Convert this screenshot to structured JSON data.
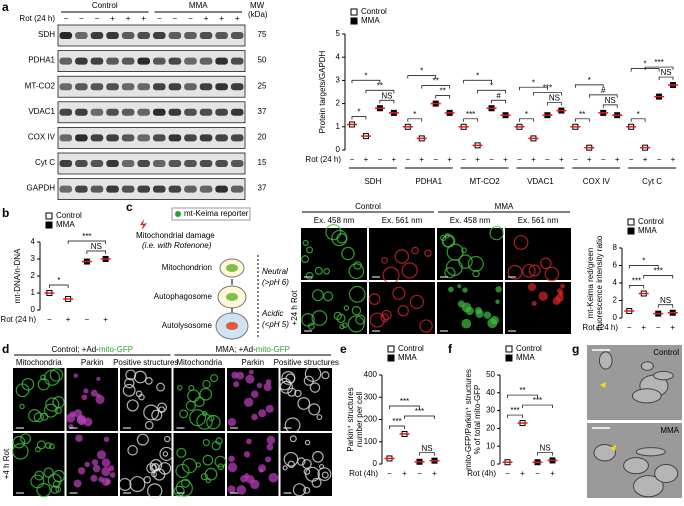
{
  "panel_labels": [
    "a",
    "b",
    "c",
    "d",
    "e",
    "f",
    "g"
  ],
  "blot": {
    "groups": [
      "Control",
      "MMA"
    ],
    "rot_label": "Rot (24 h)",
    "rot": [
      "−",
      "−",
      "−",
      "+",
      "+",
      "+",
      "−",
      "−",
      "−",
      "+",
      "+",
      "+"
    ],
    "mw_title": "MW",
    "mw_unit": "(kDa)",
    "rows": [
      {
        "protein": "SDH",
        "mw": "75"
      },
      {
        "protein": "PDHA1",
        "mw": "50"
      },
      {
        "protein": "MT-CO2",
        "mw": "25"
      },
      {
        "protein": "VDAC1",
        "mw": "37"
      },
      {
        "protein": "COX IV",
        "mw": "20"
      },
      {
        "protein": "Cyt C",
        "mw": "15"
      },
      {
        "protein": "GAPDH",
        "mw": "37"
      }
    ]
  },
  "keima_diagram": {
    "reporter": "mt-Keima reporter",
    "damage": "Mitochondrial damage",
    "damage_note": "(i.e. with Rotenone)",
    "stages": [
      "Mitochondrion",
      "Autophagosome",
      "Autolysosome"
    ],
    "neutral": "Neutral",
    "neutral_ph": "(>pH 6)",
    "acidic": "Acidic",
    "acidic_ph": "(<pH 5)"
  },
  "keima_images": {
    "groups": [
      "Control",
      "MMA"
    ],
    "channels": [
      "Ex. 458 nm",
      "Ex. 561 nm",
      "Ex. 458 nm",
      "Ex. 561 nm"
    ],
    "row_label": "+24 h Rot"
  },
  "parkin_images": {
    "groups": [
      "Control; +Ad-",
      "MMA; +Ad-"
    ],
    "reporter": "mito-GFP",
    "channels": [
      "Mitochondria",
      "Parkin",
      "Positive structures",
      "Mitochondria",
      "Parkin",
      "Positive structures"
    ],
    "row_label": "+4 h Rot"
  },
  "em_images": {
    "labels": [
      "Control",
      "MMA"
    ]
  },
  "chart_data": [
    {
      "type": "strip",
      "ylabel": [
        "Protein targets/GAPDH"
      ],
      "categories": [
        "SDH",
        "PDHA1",
        "MT-CO2",
        "VDAC1",
        "COX IV",
        "Cyt C"
      ],
      "xlabel": "Rot (24 h)",
      "rot": [
        "−",
        "+",
        "−",
        "+"
      ],
      "series": [
        {
          "name": "Control",
          "color": "#000000",
          "filled": false,
          "values": [
            [
              1.1,
              0.6
            ],
            [
              1.0,
              0.5
            ],
            [
              1.0,
              0.2
            ],
            [
              1.0,
              0.5
            ],
            [
              1.0,
              0.1
            ],
            [
              1.0,
              0.1
            ]
          ]
        },
        {
          "name": "MMA",
          "color": "#000000",
          "filled": true,
          "values": [
            [
              1.8,
              1.6
            ],
            [
              2.0,
              1.6
            ],
            [
              1.8,
              1.5
            ],
            [
              1.5,
              1.7
            ],
            [
              1.6,
              1.5
            ],
            [
              2.3,
              2.8
            ]
          ]
        }
      ],
      "mean_color": "#e31a1c",
      "ylim": [
        0,
        5
      ],
      "yticks": [
        0,
        1,
        2,
        3,
        4,
        5
      ],
      "annotations": [
        [
          "*",
          "NS",
          "**",
          "*"
        ],
        [
          "*",
          "**",
          "**",
          "*"
        ],
        [
          "***",
          "#",
          "*",
          "*"
        ],
        [
          "*",
          "NS",
          "***",
          "*"
        ],
        [
          "**",
          "NS",
          "#",
          "*"
        ],
        [
          "*",
          "NS",
          "***",
          "*"
        ]
      ]
    },
    {
      "type": "strip",
      "ylabel": [
        "mt-DNA/n-DNA"
      ],
      "xlabel": "Rot (24 h)",
      "rot": [
        "−",
        "+",
        "−",
        "+"
      ],
      "series": [
        {
          "name": "Control",
          "color": "#000000",
          "filled": false,
          "values": [
            1.0,
            0.65
          ]
        },
        {
          "name": "MMA",
          "color": "#000000",
          "filled": true,
          "values": [
            2.85,
            3.0
          ]
        }
      ],
      "mean_color": "#e31a1c",
      "ylim": [
        0,
        4
      ],
      "yticks": [
        0,
        1,
        2,
        3,
        4
      ],
      "annotations": [
        "*",
        "NS",
        "***"
      ]
    },
    {
      "type": "strip",
      "ylabel": [
        "mt-Keima red/green",
        "fluorescence intensity ratio"
      ],
      "xlabel": "Rot (24 h)",
      "rot": [
        "−",
        "+",
        "−",
        "+"
      ],
      "series": [
        {
          "name": "Control",
          "color": "#000000",
          "filled": false,
          "values": [
            0.8,
            2.8
          ]
        },
        {
          "name": "MMA",
          "color": "#000000",
          "filled": true,
          "values": [
            0.5,
            0.6
          ]
        }
      ],
      "mean_color": "#e31a1c",
      "ylim": [
        0,
        8
      ],
      "yticks": [
        0,
        2,
        4,
        6,
        8
      ],
      "annotations": [
        "***",
        "NS",
        "***",
        "*"
      ]
    },
    {
      "type": "strip",
      "ylabel": [
        "Parkin⁺ structures",
        "number per cell"
      ],
      "xlabel": "Rot (4h)",
      "rot": [
        "−",
        "+",
        "−",
        "+"
      ],
      "series": [
        {
          "name": "Control",
          "color": "#000000",
          "filled": false,
          "values": [
            25,
            135
          ]
        },
        {
          "name": "MMA",
          "color": "#000000",
          "filled": true,
          "values": [
            10,
            15
          ]
        }
      ],
      "mean_color": "#e31a1c",
      "ylim": [
        0,
        400
      ],
      "yticks": [
        0,
        100,
        200,
        300,
        400
      ],
      "annotations": [
        "***",
        "NS",
        "***",
        "***"
      ]
    },
    {
      "type": "strip",
      "ylabel": [
        "mito-GFP/Parkin⁺ structures",
        "% of total mito-GFP"
      ],
      "xlabel": "Rot (4h)",
      "rot": [
        "−",
        "+",
        "−",
        "+"
      ],
      "series": [
        {
          "name": "Control",
          "color": "#000000",
          "filled": false,
          "values": [
            1,
            23
          ]
        },
        {
          "name": "MMA",
          "color": "#000000",
          "filled": true,
          "values": [
            1,
            2
          ]
        }
      ],
      "mean_color": "#e31a1c",
      "ylim": [
        0,
        50
      ],
      "yticks": [
        0,
        10,
        20,
        30,
        40,
        50
      ],
      "annotations": [
        "***",
        "NS",
        "***",
        "**"
      ]
    }
  ]
}
